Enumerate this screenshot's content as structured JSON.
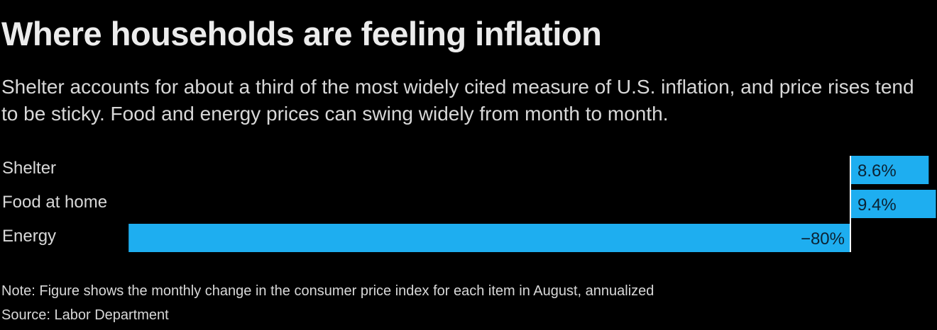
{
  "title": "Where households are feeling inflation",
  "subtitle": "Shelter accounts for about a third of the most widely cited measure of U.S. inflation, and price rises tend to be sticky. Food and energy prices can swing widely from month to month.",
  "note": "Note: Figure shows the monthly change in the consumer price index for each item in August, annualized",
  "source": "Source: Labor Department",
  "colors": {
    "bar": "#1eaef0",
    "background": "#000000",
    "zero_line": "#ffffff",
    "label_text": "#0b2233"
  },
  "chart_data": {
    "type": "bar",
    "orientation": "horizontal",
    "categories": [
      "Shelter",
      "Food at home",
      "Energy"
    ],
    "values": [
      8.6,
      9.4,
      -80
    ],
    "value_labels": [
      "8.6%",
      "9.4%",
      "−80%"
    ],
    "unit": "%",
    "xlim": [
      -80,
      9.4
    ],
    "grid": false
  }
}
